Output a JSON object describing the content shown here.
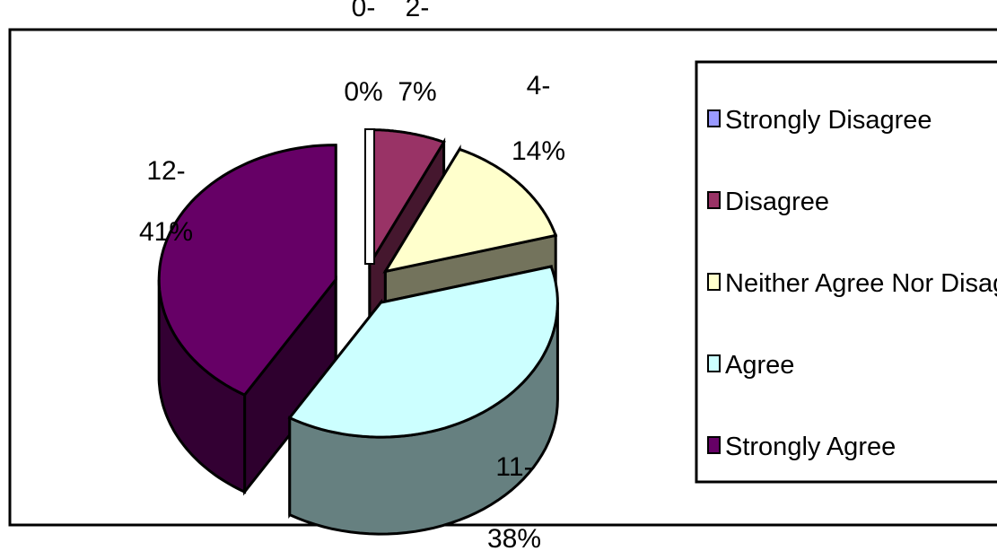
{
  "chart_data": {
    "type": "pie",
    "style": "exploded-3d",
    "title": "",
    "legend_position": "right",
    "categories": [
      "Strongly Disagree",
      "Disagree",
      "Neither Agree Nor Disagree",
      "Agree",
      "Strongly Agree"
    ],
    "values": [
      0,
      2,
      4,
      11,
      12
    ],
    "percent_labels": [
      "0%",
      "7%",
      "14%",
      "38%",
      "41%"
    ],
    "count_labels": [
      "0-",
      "2-",
      "4-",
      "11-",
      "12-"
    ],
    "colors": [
      "#9999ff",
      "#993366",
      "#ffffcc",
      "#ccffff",
      "#660066"
    ]
  }
}
